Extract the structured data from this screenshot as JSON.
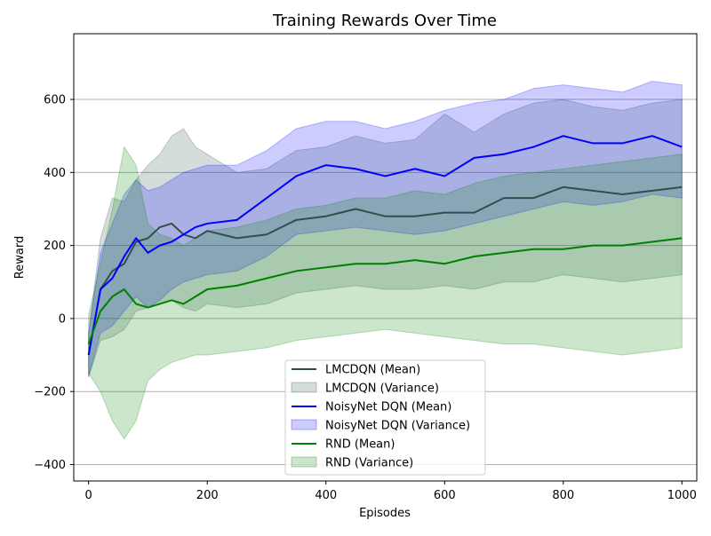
{
  "chart_data": {
    "type": "line",
    "title": "Training Rewards Over Time",
    "xlabel": "Episodes",
    "ylabel": "Reward",
    "xlim": [
      -25,
      1025
    ],
    "ylim": [
      -445,
      780
    ],
    "xticks": [
      0,
      200,
      400,
      600,
      800,
      1000
    ],
    "yticks": [
      -400,
      -200,
      0,
      200,
      400,
      600
    ],
    "grid": "horizontal",
    "legend_position": "lower center",
    "x": [
      0,
      20,
      40,
      60,
      80,
      100,
      120,
      140,
      160,
      180,
      200,
      250,
      300,
      350,
      400,
      450,
      500,
      550,
      600,
      650,
      700,
      750,
      800,
      850,
      900,
      950,
      1000
    ],
    "series": [
      {
        "name": "LMCDQN (Mean)",
        "band_name": "LMCDQN (Variance)",
        "color": "#2f4f4f",
        "mean": [
          -100,
          80,
          130,
          150,
          210,
          220,
          250,
          260,
          230,
          220,
          240,
          220,
          230,
          270,
          280,
          300,
          280,
          280,
          290,
          290,
          330,
          330,
          360,
          350,
          340,
          350,
          360
        ],
        "lower": [
          -160,
          -60,
          -50,
          -30,
          20,
          30,
          40,
          50,
          30,
          20,
          40,
          30,
          40,
          70,
          80,
          90,
          80,
          80,
          90,
          80,
          100,
          100,
          120,
          110,
          100,
          110,
          120
        ],
        "upper": [
          -40,
          220,
          330,
          320,
          380,
          420,
          450,
          500,
          520,
          470,
          450,
          400,
          410,
          460,
          470,
          500,
          480,
          490,
          560,
          510,
          560,
          590,
          600,
          580,
          570,
          590,
          600
        ]
      },
      {
        "name": "NoisyNet DQN (Mean)",
        "band_name": "NoisyNet DQN (Variance)",
        "color": "#0000ff",
        "mean": [
          -100,
          80,
          110,
          170,
          220,
          180,
          200,
          210,
          230,
          250,
          260,
          270,
          330,
          390,
          420,
          410,
          390,
          410,
          390,
          440,
          450,
          470,
          500,
          480,
          480,
          500,
          470
        ],
        "lower": [
          -160,
          -40,
          -20,
          20,
          60,
          30,
          50,
          80,
          100,
          110,
          120,
          130,
          170,
          230,
          240,
          250,
          240,
          230,
          240,
          260,
          280,
          300,
          320,
          310,
          320,
          340,
          330
        ],
        "upper": [
          -40,
          180,
          260,
          340,
          380,
          350,
          360,
          380,
          400,
          410,
          420,
          420,
          460,
          520,
          540,
          540,
          520,
          540,
          570,
          590,
          600,
          630,
          640,
          630,
          620,
          650,
          640
        ]
      },
      {
        "name": "RND (Mean)",
        "band_name": "RND (Variance)",
        "color": "#008000",
        "mean": [
          -70,
          20,
          60,
          80,
          40,
          30,
          40,
          50,
          40,
          60,
          80,
          90,
          110,
          130,
          140,
          150,
          150,
          160,
          150,
          170,
          180,
          190,
          190,
          200,
          200,
          210,
          220
        ],
        "lower": [
          -150,
          -200,
          -280,
          -330,
          -280,
          -170,
          -140,
          -120,
          -110,
          -100,
          -100,
          -90,
          -80,
          -60,
          -50,
          -40,
          -30,
          -40,
          -50,
          -60,
          -70,
          -70,
          -80,
          -90,
          -100,
          -90,
          -80
        ],
        "upper": [
          10,
          150,
          300,
          470,
          420,
          260,
          230,
          220,
          200,
          220,
          240,
          250,
          270,
          300,
          310,
          330,
          330,
          350,
          340,
          370,
          390,
          400,
          410,
          420,
          430,
          440,
          450
        ]
      }
    ]
  }
}
